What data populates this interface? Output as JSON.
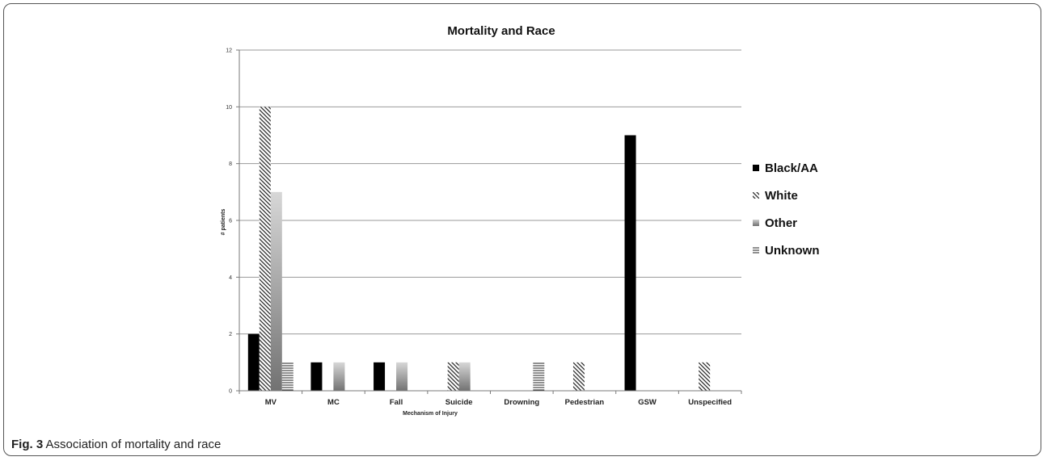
{
  "chart_data": {
    "type": "bar",
    "title": "Mortality and Race",
    "xlabel": "Mechanism of Injury",
    "ylabel": "# patients",
    "ylim": [
      0,
      12
    ],
    "yticks": [
      0,
      2,
      4,
      6,
      8,
      10,
      12
    ],
    "grid": true,
    "legend_position": "right",
    "categories": [
      "MV",
      "MC",
      "Fall",
      "Suicide",
      "Drowning",
      "Pedestrian",
      "GSW",
      "Unspecified"
    ],
    "series": [
      {
        "name": "Black/AA",
        "values": [
          2,
          1,
          1,
          0,
          0,
          0,
          9,
          0
        ],
        "pattern": "solid",
        "color": "#000000"
      },
      {
        "name": "White",
        "values": [
          10,
          0,
          0,
          1,
          0,
          1,
          0,
          1
        ],
        "pattern": "diagonal-hatch",
        "color": "#333333"
      },
      {
        "name": "Other",
        "values": [
          7,
          1,
          1,
          1,
          0,
          0,
          0,
          0
        ],
        "pattern": "gray-gradient",
        "color": "#8c8c8c"
      },
      {
        "name": "Unknown",
        "values": [
          1,
          0,
          0,
          0,
          1,
          0,
          0,
          0
        ],
        "pattern": "horizontal-lines",
        "color": "#333333"
      }
    ]
  },
  "caption": {
    "label": "Fig. 3",
    "text": "Association of mortality and race"
  }
}
